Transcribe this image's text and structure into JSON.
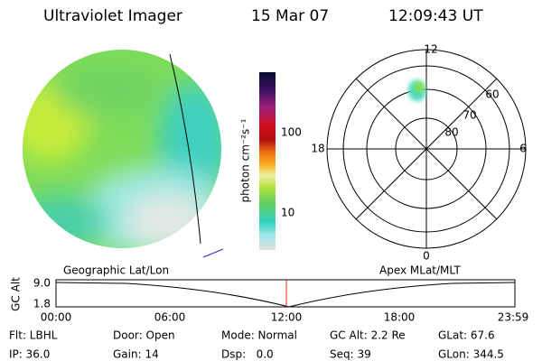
{
  "header": {
    "title": "Ultraviolet Imager",
    "date": "15 Mar 07",
    "time": "12:09:43 UT"
  },
  "colorbar": {
    "label": "photon cm⁻²s⁻¹",
    "ticks": [
      100,
      10
    ]
  },
  "polar": {
    "mlt_labels": [
      "12",
      "18",
      "6",
      "0"
    ],
    "lat_labels": [
      "60",
      "70",
      "80"
    ]
  },
  "orbit": {
    "left_label": "Geographic Lat/Lon",
    "right_label": "Apex MLat/MLT",
    "y_label": "GC Alt",
    "y_ticks": [
      "9.0",
      "1.8"
    ],
    "x_ticks": [
      "00:00",
      "06:00",
      "12:00",
      "18:00",
      "23:59"
    ]
  },
  "info": {
    "rows": [
      [
        "Flt: LBHL",
        "Door: Open",
        "Mode: Normal",
        "GC Alt: 2.2 Re",
        "GLat: 67.6"
      ],
      [
        "IP: 36.0",
        "Gain: 14",
        "Dsp:   0.0",
        "Seq: 39",
        "GLon: 344.5"
      ]
    ]
  }
}
